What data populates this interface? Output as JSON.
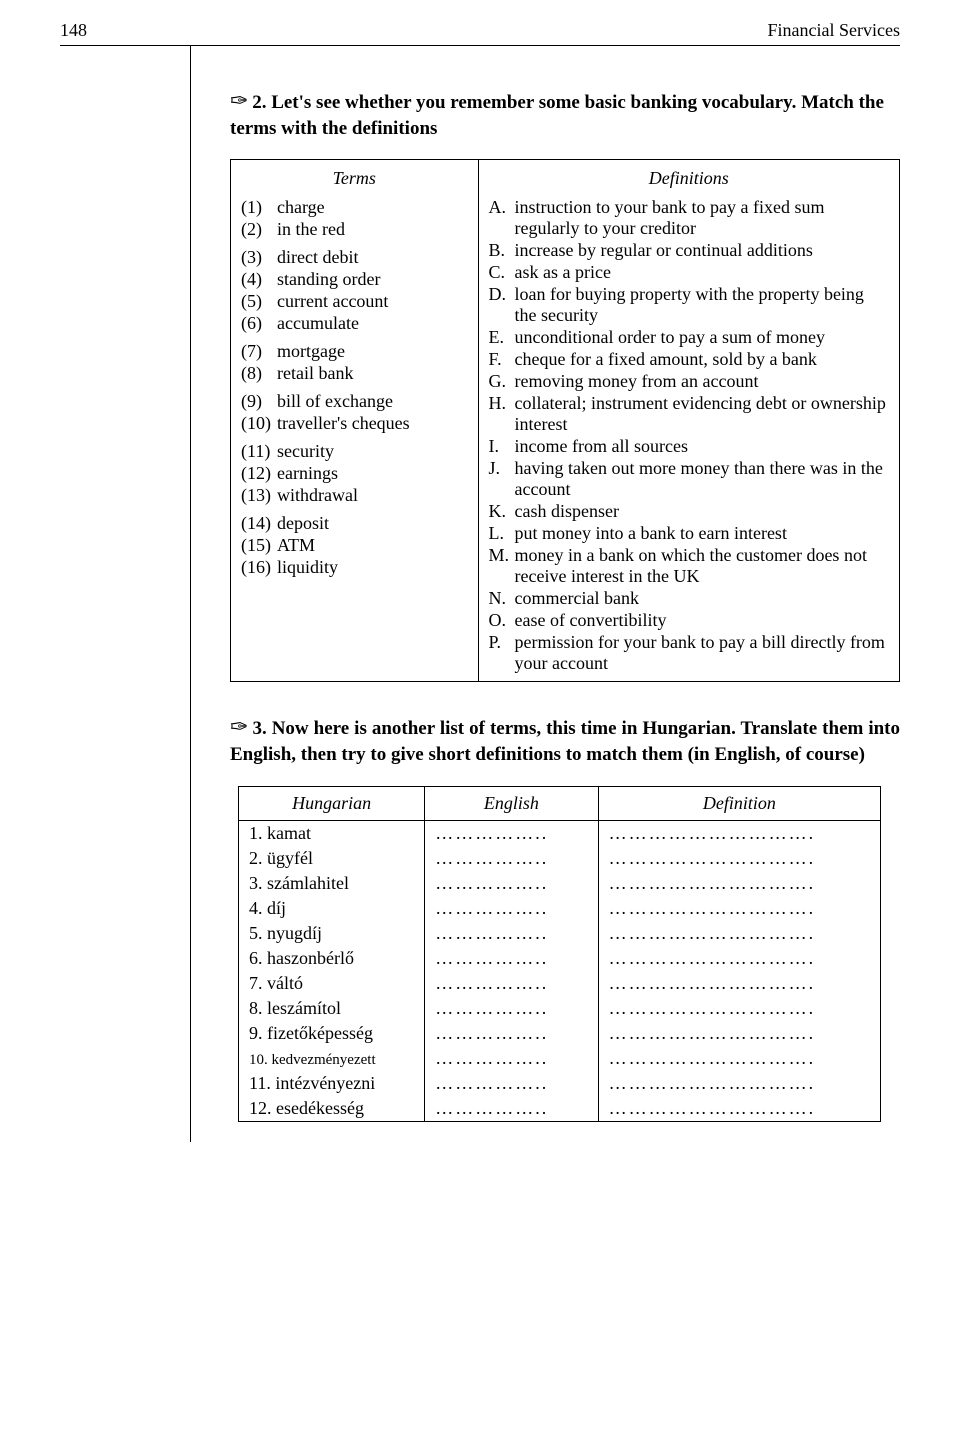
{
  "header": {
    "page_number": "148",
    "section_title": "Financial Services"
  },
  "ex2": {
    "scribble": "✑",
    "label": "2. Let's see whether you remember some basic banking vocabulary. Match the terms with the definitions",
    "terms_header": "Terms",
    "defs_header": "Definitions",
    "terms": [
      {
        "n": "(1)",
        "t": "charge"
      },
      {
        "n": "(2)",
        "t": "in the red"
      },
      {
        "n": "(3)",
        "t": "direct debit"
      },
      {
        "n": "(4)",
        "t": "standing order"
      },
      {
        "n": "(5)",
        "t": "current account"
      },
      {
        "n": "(6)",
        "t": "accumulate"
      },
      {
        "n": "(7)",
        "t": "mortgage"
      },
      {
        "n": "(8)",
        "t": "retail bank"
      },
      {
        "n": "(9)",
        "t": "bill of exchange"
      },
      {
        "n": "(10)",
        "t": "traveller's cheques"
      },
      {
        "n": "(11)",
        "t": "security"
      },
      {
        "n": "(12)",
        "t": "earnings"
      },
      {
        "n": "(13)",
        "t": "withdrawal"
      },
      {
        "n": "(14)",
        "t": "deposit"
      },
      {
        "n": "(15)",
        "t": "ATM"
      },
      {
        "n": "(16)",
        "t": "liquidity"
      }
    ],
    "term_gaps_after": [
      1,
      5,
      7,
      9,
      12
    ],
    "defs": [
      {
        "l": "A.",
        "t": "instruction to your bank to pay a fixed sum regularly to your creditor"
      },
      {
        "l": "B.",
        "t": "increase by regular or continual additions"
      },
      {
        "l": "C.",
        "t": "ask as a price"
      },
      {
        "l": "D.",
        "t": "loan for buying property with the property being the security"
      },
      {
        "l": "E.",
        "t": "unconditional order to pay a sum of money"
      },
      {
        "l": "F.",
        "t": "cheque for a fixed amount, sold by a bank"
      },
      {
        "l": "G.",
        "t": "removing money from an account"
      },
      {
        "l": "H.",
        "t": "collateral; instrument evidencing debt or ownership interest"
      },
      {
        "l": "I.",
        "t": "income from all sources"
      },
      {
        "l": "J.",
        "t": "having taken out more money than there was in the account"
      },
      {
        "l": "K.",
        "t": "cash dispenser"
      },
      {
        "l": "L.",
        "t": "put money into a bank to earn interest"
      },
      {
        "l": "M.",
        "t": "money in a bank on which the customer does not receive interest in the UK"
      },
      {
        "l": "N.",
        "t": "commercial bank"
      },
      {
        "l": "O.",
        "t": "ease of convertibility"
      },
      {
        "l": "P.",
        "t": "permission for your bank to pay a bill directly from your account"
      }
    ]
  },
  "ex3": {
    "scribble": "✑",
    "label": "3. Now here is another list of terms, this time in Hungarian. Translate them into English, then try to give short definitions to match them (in English, of course)",
    "cols": {
      "hu": "Hungarian",
      "en": "English",
      "def": "Definition"
    },
    "rows": [
      {
        "n": "1.",
        "hu": "kamat",
        "size": "normal"
      },
      {
        "n": "2.",
        "hu": "ügyfél",
        "size": "normal"
      },
      {
        "n": "3.",
        "hu": "számlahitel",
        "size": "normal"
      },
      {
        "n": "4.",
        "hu": "díj",
        "size": "normal"
      },
      {
        "n": "5.",
        "hu": "nyugdíj",
        "size": "normal"
      },
      {
        "n": "6.",
        "hu": "haszonbérlő",
        "size": "normal"
      },
      {
        "n": "7.",
        "hu": "váltó",
        "size": "normal"
      },
      {
        "n": "8.",
        "hu": "leszámítol",
        "size": "normal"
      },
      {
        "n": "9.",
        "hu": "fizetőképesség",
        "size": "normal"
      },
      {
        "n": "10.",
        "hu": "kedvezményezett",
        "size": "small"
      },
      {
        "n": "11.",
        "hu": "intézvényezni",
        "size": "normal"
      },
      {
        "n": "12.",
        "hu": "esedékesség",
        "size": "normal"
      }
    ],
    "dots_short": "……………..",
    "dots_long": "………………………….",
    "col_widths": {
      "hu": "29%",
      "en": "27%",
      "def": "44%"
    }
  },
  "colors": {
    "text": "#000000",
    "bg": "#ffffff",
    "border": "#000000"
  }
}
